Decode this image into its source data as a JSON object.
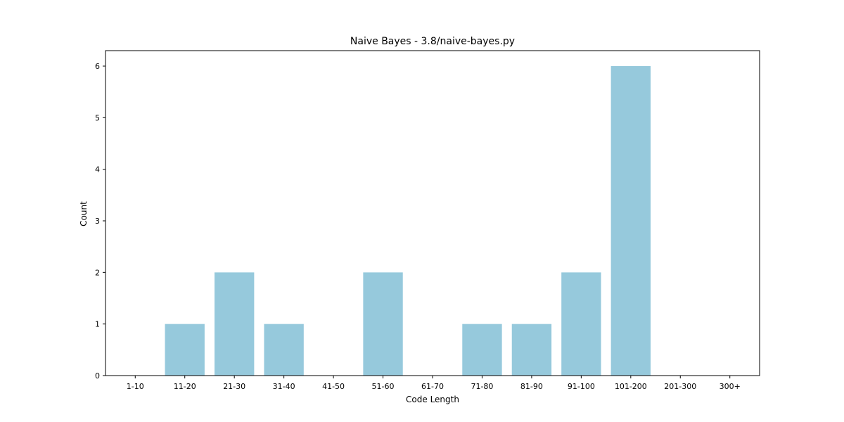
{
  "chart_data": {
    "type": "bar",
    "title": "Naive Bayes - 3.8/naive-bayes.py",
    "xlabel": "Code Length",
    "ylabel": "Count",
    "categories": [
      "1-10",
      "11-20",
      "21-30",
      "31-40",
      "41-50",
      "51-60",
      "61-70",
      "71-80",
      "81-90",
      "91-100",
      "101-200",
      "201-300",
      "300+"
    ],
    "values": [
      0,
      1,
      2,
      1,
      0,
      2,
      0,
      1,
      1,
      2,
      6,
      0,
      0
    ],
    "ylim": [
      0,
      6.3
    ],
    "yticks": [
      0,
      1,
      2,
      3,
      4,
      5,
      6
    ],
    "bar_color": "#96c9dc",
    "grid": false,
    "legend": "none"
  }
}
